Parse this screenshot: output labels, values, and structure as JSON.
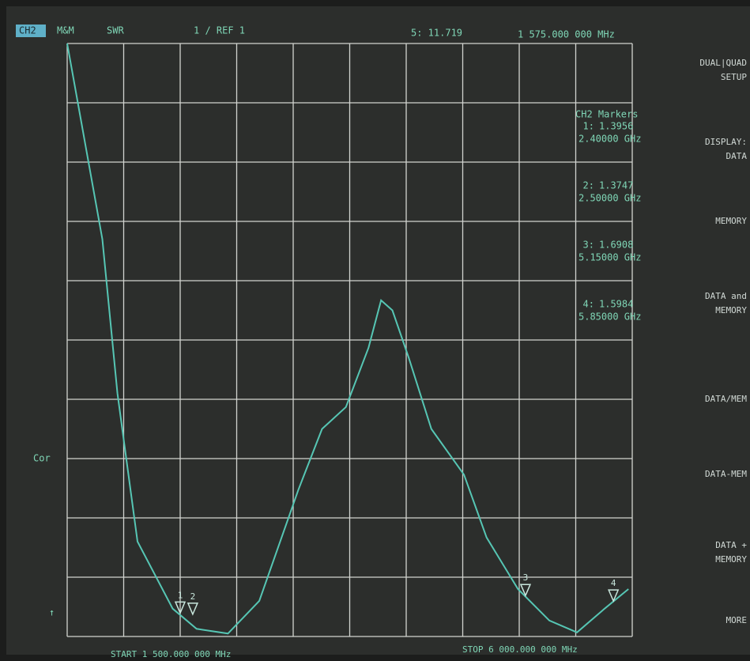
{
  "header": {
    "channel": "CH2",
    "format_tag": "M&M",
    "format": "SWR",
    "scale": "1 / REF 1",
    "active_marker": "5: 11.719",
    "active_freq": "1 575.000 000 MHz"
  },
  "chart_data": {
    "type": "line",
    "x": [
      1.5,
      1.78,
      1.9,
      2.06,
      2.34,
      2.53,
      2.78,
      3.03,
      3.34,
      3.53,
      3.72,
      3.9,
      4.0,
      4.09,
      4.22,
      4.4,
      4.66,
      4.84,
      5.09,
      5.34,
      5.56,
      5.78,
      5.97
    ],
    "series": [
      {
        "name": "SWR",
        "color": "#56c6b4",
        "values": [
          11,
          7.7,
          5.1,
          2.6,
          1.47,
          1.13,
          1.05,
          1.6,
          3.47,
          4.5,
          4.87,
          5.87,
          6.67,
          6.5,
          5.7,
          4.5,
          3.73,
          2.67,
          1.8,
          1.27,
          1.07,
          1.47,
          1.8
        ]
      }
    ],
    "xlim": [
      1.5,
      6.0
    ],
    "ylim": [
      1,
      11
    ],
    "xticks": [
      1.5,
      1.95,
      2.4,
      2.85,
      3.3,
      3.75,
      4.2,
      4.65,
      5.1,
      5.55,
      6.0
    ],
    "yticks": [
      1,
      2,
      3,
      4,
      5,
      6,
      7,
      8,
      9,
      10,
      11
    ],
    "grid": true,
    "start": "START 1 500.000 000 MHz",
    "stop": "STOP 6 000.000 000 MHz"
  },
  "markers_title": "CH2 Markers",
  "markers": [
    {
      "number": "1",
      "label": "1:",
      "value": 1.3956,
      "freq": 2.4,
      "freq_label": "2.40000 GHz"
    },
    {
      "number": "2",
      "label": "2:",
      "value": 1.3747,
      "freq": 2.5,
      "freq_label": "2.50000 GHz"
    },
    {
      "number": "3",
      "label": "3:",
      "value": 1.6908,
      "freq": 5.15,
      "freq_label": "5.15000 GHz"
    },
    {
      "number": "4",
      "label": "4:",
      "value": 1.5984,
      "freq": 5.85,
      "freq_label": "5.85000 GHz"
    }
  ],
  "side_label": "Cor",
  "softkeys": [
    [
      "DUAL|QUAD",
      "SETUP"
    ],
    [
      "DISPLAY:",
      "DATA"
    ],
    [
      "MEMORY"
    ],
    [
      "DATA and",
      "MEMORY"
    ],
    [
      "DATA/MEM"
    ],
    [
      "DATA-MEM"
    ],
    [
      "DATA +",
      "MEMORY"
    ],
    [
      "MORE"
    ]
  ]
}
